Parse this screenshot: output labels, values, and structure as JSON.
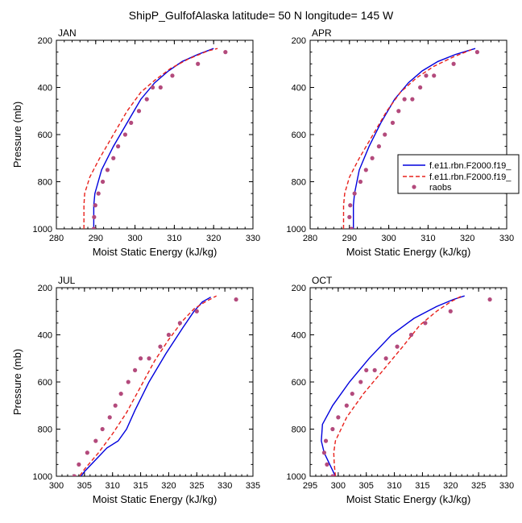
{
  "title": "ShipP_GulfofAlaska  latitude= 50 N longitude= 145 W",
  "colors": {
    "model1": "#0000dd",
    "model2": "#e8211c",
    "raobs": "#b34a7c"
  },
  "legend": {
    "model1": "f.e11.rbn.F2000.f19_",
    "model2": "f.e11.rbn.F2000.f19_",
    "raobs": "raobs"
  },
  "chart_data": [
    {
      "type": "line",
      "title": "JAN",
      "xlabel": "Moist Static Energy (kJ/kg)",
      "ylabel": "Pressure (mb)",
      "xlim": [
        280,
        330
      ],
      "ylim": [
        1000,
        200
      ],
      "xticks": [
        "280",
        "290",
        "300",
        "310",
        "320",
        "330"
      ],
      "yticks": [
        "200",
        "400",
        "600",
        "800",
        "1000"
      ],
      "series": [
        {
          "name": "f.e11.rbn.F2000.f19_",
          "style": "solid",
          "x": [
            289.5,
            289.5,
            289.8,
            291.5,
            294.5,
            298,
            301.5,
            305,
            308.5,
            312,
            316,
            320
          ],
          "y": [
            1000,
            900,
            850,
            750,
            650,
            550,
            450,
            380,
            330,
            290,
            260,
            235
          ]
        },
        {
          "name": "f.e11.rbn.F2000.f19_",
          "style": "dashed",
          "x": [
            287,
            287,
            287.2,
            288.5,
            291,
            294.5,
            298,
            301.5,
            305,
            309,
            313.5,
            318.5,
            321
          ],
          "y": [
            1000,
            900,
            850,
            780,
            700,
            600,
            500,
            420,
            370,
            320,
            280,
            245,
            235
          ]
        },
        {
          "name": "raobs",
          "style": "markers",
          "x": [
            289.5,
            289.6,
            289.9,
            290.7,
            291.8,
            293,
            294.5,
            295.7,
            297.5,
            299,
            301,
            303,
            304.5,
            306.5,
            309.5,
            316,
            323
          ],
          "y": [
            1000,
            950,
            900,
            850,
            800,
            750,
            700,
            650,
            600,
            550,
            500,
            450,
            400,
            400,
            350,
            300,
            250
          ]
        }
      ]
    },
    {
      "type": "line",
      "title": "APR",
      "xlabel": "Moist Static Energy (kJ/kg)",
      "ylabel": "",
      "xlim": [
        280,
        330
      ],
      "ylim": [
        1000,
        200
      ],
      "xticks": [
        "280",
        "290",
        "300",
        "310",
        "320",
        "330"
      ],
      "yticks": [
        "200",
        "400",
        "600",
        "800",
        "1000"
      ],
      "series": [
        {
          "name": "f.e11.rbn.F2000.f19_",
          "style": "solid",
          "x": [
            291,
            291,
            291.3,
            292.5,
            295,
            298,
            301.5,
            305,
            308.5,
            312.5,
            317,
            322
          ],
          "y": [
            1000,
            900,
            850,
            750,
            650,
            550,
            450,
            380,
            330,
            290,
            260,
            235
          ]
        },
        {
          "name": "f.e11.rbn.F2000.f19_",
          "style": "dashed",
          "x": [
            288.5,
            288.5,
            288.8,
            290,
            292.5,
            296,
            299.5,
            303,
            307,
            311.5,
            316.5,
            321
          ],
          "y": [
            1000,
            900,
            850,
            780,
            700,
            600,
            500,
            420,
            360,
            310,
            270,
            240
          ]
        },
        {
          "name": "raobs",
          "style": "markers",
          "x": [
            290.5,
            290,
            290.2,
            291.3,
            292.8,
            294.2,
            295.8,
            297.5,
            299,
            301,
            302.5,
            304,
            306,
            308,
            309.5,
            311.5,
            316.5,
            322.5
          ],
          "y": [
            1000,
            950,
            900,
            850,
            800,
            750,
            700,
            650,
            600,
            550,
            500,
            450,
            450,
            400,
            350,
            350,
            300,
            250
          ]
        }
      ]
    },
    {
      "type": "line",
      "title": "JUL",
      "xlabel": "Moist Static Energy (kJ/kg)",
      "ylabel": "Pressure (mb)",
      "xlim": [
        300,
        335
      ],
      "ylim": [
        1000,
        200
      ],
      "xticks": [
        "300",
        "305",
        "310",
        "315",
        "320",
        "325",
        "330",
        "335"
      ],
      "yticks": [
        "200",
        "400",
        "600",
        "800",
        "1000"
      ],
      "series": [
        {
          "name": "f.e11.rbn.F2000.f19_",
          "style": "solid",
          "x": [
            303.8,
            305,
            307,
            309,
            311,
            312.5,
            314,
            316.5,
            319.5,
            322.5,
            324.5,
            326,
            327.5
          ],
          "y": [
            1020,
            980,
            930,
            880,
            850,
            800,
            720,
            600,
            480,
            370,
            300,
            260,
            240
          ]
        },
        {
          "name": "f.e11.rbn.F2000.f19_",
          "style": "dashed",
          "x": [
            303.5,
            305,
            307.5,
            310,
            312.5,
            315,
            317.5,
            320,
            322.5,
            324.5,
            326.5,
            328.5
          ],
          "y": [
            1020,
            970,
            900,
            820,
            730,
            620,
            510,
            420,
            340,
            290,
            260,
            235
          ]
        },
        {
          "name": "raobs",
          "style": "markers",
          "x": [
            303.2,
            304,
            305.5,
            307,
            308.2,
            309.5,
            310.5,
            311.5,
            312.8,
            314,
            315,
            316.5,
            318.5,
            320,
            322,
            325,
            332
          ],
          "y": [
            1000,
            950,
            900,
            850,
            800,
            750,
            700,
            650,
            600,
            550,
            500,
            500,
            450,
            400,
            350,
            300,
            250
          ]
        }
      ]
    },
    {
      "type": "line",
      "title": "OCT",
      "xlabel": "Moist Static Energy (kJ/kg)",
      "ylabel": "",
      "xlim": [
        295,
        330
      ],
      "ylim": [
        1000,
        200
      ],
      "xticks": [
        "295",
        "300",
        "305",
        "310",
        "315",
        "320",
        "325",
        "330"
      ],
      "yticks": [
        "200",
        "400",
        "600",
        "800",
        "1000"
      ],
      "series": [
        {
          "name": "f.e11.rbn.F2000.f19_",
          "style": "solid",
          "x": [
            299.5,
            298.5,
            297.5,
            297,
            297.2,
            299,
            302,
            305.5,
            309.5,
            313.5,
            317.5,
            320.5,
            322.5
          ],
          "y": [
            1000,
            950,
            900,
            850,
            780,
            700,
            600,
            500,
            400,
            330,
            280,
            250,
            235
          ]
        },
        {
          "name": "f.e11.rbn.F2000.f19_",
          "style": "dashed",
          "x": [
            299.5,
            299.3,
            299.2,
            299.5,
            301.5,
            304.5,
            308,
            311.5,
            314.5,
            317.5,
            320,
            322
          ],
          "y": [
            1000,
            950,
            900,
            850,
            750,
            650,
            550,
            450,
            360,
            300,
            260,
            235
          ]
        },
        {
          "name": "raobs",
          "style": "markers",
          "x": [
            299,
            298,
            297.5,
            297.8,
            299,
            300,
            301.5,
            302.5,
            304,
            305,
            306.5,
            308.5,
            310.5,
            313,
            315.5,
            320,
            327
          ],
          "y": [
            1000,
            950,
            900,
            850,
            800,
            750,
            700,
            650,
            600,
            550,
            550,
            500,
            450,
            400,
            350,
            300,
            250
          ]
        }
      ]
    }
  ]
}
